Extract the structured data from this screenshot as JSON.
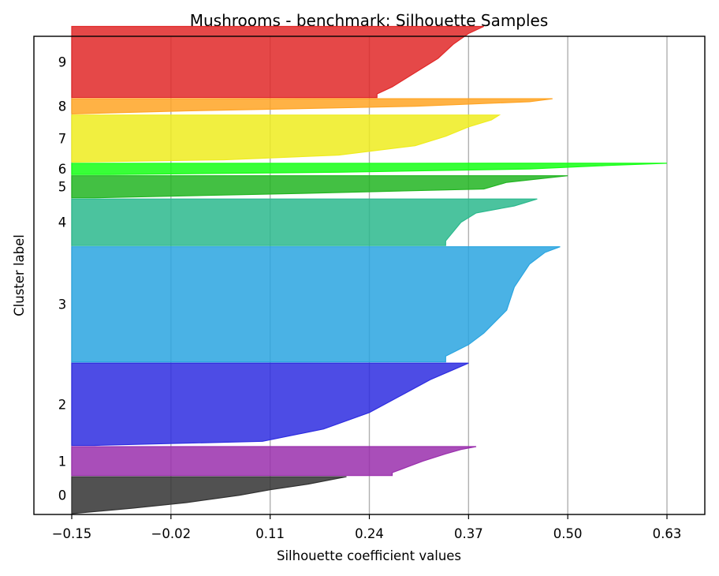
{
  "chart_data": {
    "type": "area",
    "title": "Mushrooms - benchmark: Silhouette Samples",
    "xlabel": "Silhouette coefficient values",
    "ylabel": "Cluster label",
    "xlim": [
      -0.15,
      0.68
    ],
    "x_ticks": [
      "-0.15",
      "-0.02",
      "0.11",
      "0.24",
      "0.37",
      "0.50",
      "0.63"
    ],
    "x_tick_values": [
      -0.15,
      -0.02,
      0.11,
      0.24,
      0.37,
      0.5,
      0.63
    ],
    "grid": "vertical",
    "y_axis_ticks": "none",
    "series": [
      {
        "label": "0",
        "color": "#333333",
        "size": 0.092,
        "profile": [
          [
            0,
            0.21
          ],
          [
            0.08,
            0.19
          ],
          [
            0.2,
            0.16
          ],
          [
            0.35,
            0.11
          ],
          [
            0.5,
            0.07
          ],
          [
            0.7,
            0.0
          ],
          [
            0.85,
            -0.07
          ],
          [
            1,
            -0.15
          ]
        ]
      },
      {
        "label": "1",
        "color": "#9a2fad",
        "size": 0.072,
        "profile": [
          [
            0,
            0.38
          ],
          [
            0.1,
            0.36
          ],
          [
            0.25,
            0.34
          ],
          [
            0.5,
            0.31
          ],
          [
            0.7,
            0.29
          ],
          [
            0.9,
            0.27
          ],
          [
            1,
            0.27
          ]
        ]
      },
      {
        "label": "2",
        "color": "#2e2de0",
        "size": 0.205,
        "profile": [
          [
            0,
            0.37
          ],
          [
            0.08,
            0.35
          ],
          [
            0.2,
            0.32
          ],
          [
            0.4,
            0.28
          ],
          [
            0.6,
            0.24
          ],
          [
            0.8,
            0.18
          ],
          [
            0.95,
            0.1
          ],
          [
            1,
            -0.12
          ]
        ]
      },
      {
        "label": "3",
        "color": "#2aa5e0",
        "size": 0.287,
        "profile": [
          [
            0,
            0.49
          ],
          [
            0.05,
            0.47
          ],
          [
            0.15,
            0.45
          ],
          [
            0.35,
            0.43
          ],
          [
            0.55,
            0.42
          ],
          [
            0.75,
            0.39
          ],
          [
            0.85,
            0.37
          ],
          [
            0.95,
            0.34
          ],
          [
            1,
            0.34
          ]
        ]
      },
      {
        "label": "4",
        "color": "#2bb98d",
        "size": 0.116,
        "profile": [
          [
            0,
            0.46
          ],
          [
            0.15,
            0.43
          ],
          [
            0.3,
            0.38
          ],
          [
            0.5,
            0.36
          ],
          [
            0.7,
            0.35
          ],
          [
            0.9,
            0.34
          ],
          [
            1,
            0.34
          ]
        ]
      },
      {
        "label": "5",
        "color": "#22b522",
        "size": 0.055,
        "profile": [
          [
            0,
            0.5
          ],
          [
            0.15,
            0.46
          ],
          [
            0.3,
            0.42
          ],
          [
            0.6,
            0.39
          ],
          [
            0.8,
            0.15
          ],
          [
            1,
            -0.12
          ]
        ]
      },
      {
        "label": "6",
        "color": "#15ff15",
        "size": 0.028,
        "profile": [
          [
            0,
            0.63
          ],
          [
            0.2,
            0.55
          ],
          [
            0.5,
            0.45
          ],
          [
            0.8,
            0.2
          ],
          [
            1,
            -0.1
          ]
        ]
      },
      {
        "label": "7",
        "color": "#efec1f",
        "size": 0.117,
        "profile": [
          [
            0,
            0.41
          ],
          [
            0.1,
            0.4
          ],
          [
            0.25,
            0.37
          ],
          [
            0.45,
            0.34
          ],
          [
            0.65,
            0.3
          ],
          [
            0.85,
            0.2
          ],
          [
            0.95,
            0.05
          ],
          [
            1,
            -0.15
          ]
        ]
      },
      {
        "label": "8",
        "color": "#ffa424",
        "size": 0.038,
        "profile": [
          [
            0,
            0.48
          ],
          [
            0.2,
            0.45
          ],
          [
            0.5,
            0.3
          ],
          [
            0.8,
            0.0
          ],
          [
            1,
            -0.15
          ]
        ]
      },
      {
        "label": "9",
        "color": "#e12828",
        "size": 0.177,
        "profile": [
          [
            0,
            0.39
          ],
          [
            0.1,
            0.37
          ],
          [
            0.25,
            0.35
          ],
          [
            0.45,
            0.33
          ],
          [
            0.65,
            0.3
          ],
          [
            0.85,
            0.27
          ],
          [
            0.95,
            0.25
          ],
          [
            1,
            0.25
          ]
        ]
      }
    ]
  }
}
